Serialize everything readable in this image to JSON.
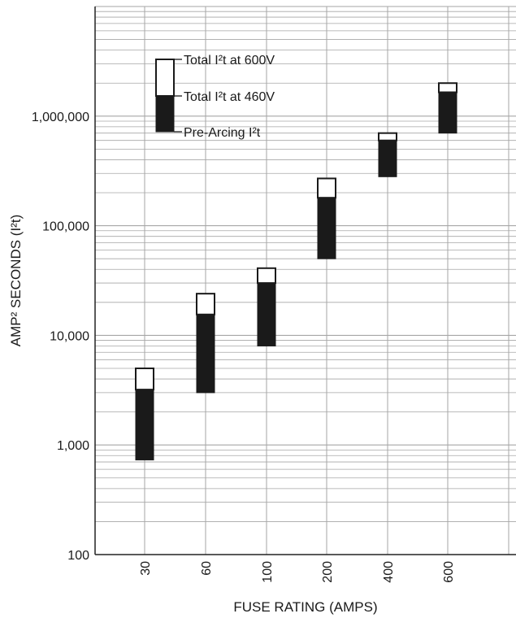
{
  "chart_data": {
    "type": "bar",
    "subtype": "floating-range",
    "scale": "log",
    "xlabel": "FUSE RATING (AMPS)",
    "ylabel": "AMP² SECONDS (I²t)",
    "ylim": [
      100,
      10000000
    ],
    "grid": true,
    "categories": [
      "30",
      "60",
      "100",
      "200",
      "400",
      "600"
    ],
    "y_ticks": [
      {
        "value": 100,
        "label": "100"
      },
      {
        "value": 1000,
        "label": "1,000"
      },
      {
        "value": 10000,
        "label": "10,000"
      },
      {
        "value": 100000,
        "label": "100,000"
      },
      {
        "value": 1000000,
        "label": "1,000,000"
      }
    ],
    "series": [
      {
        "name": "Pre-Arcing I²t",
        "values": [
          730,
          3000,
          8000,
          50000,
          280000,
          700000
        ]
      },
      {
        "name": "Total I²t at 460V",
        "values": [
          3200,
          15500,
          30000,
          180000,
          600000,
          1650000
        ]
      },
      {
        "name": "Total I²t at 600V",
        "values": [
          5000,
          24000,
          41000,
          270000,
          700000,
          2000000
        ]
      }
    ],
    "legend_position": "top-left",
    "colors": {
      "total_460v": "#1a1a1a",
      "total_600v": "#ffffff",
      "grid": "#a6a6a6",
      "axis": "#222222"
    }
  }
}
